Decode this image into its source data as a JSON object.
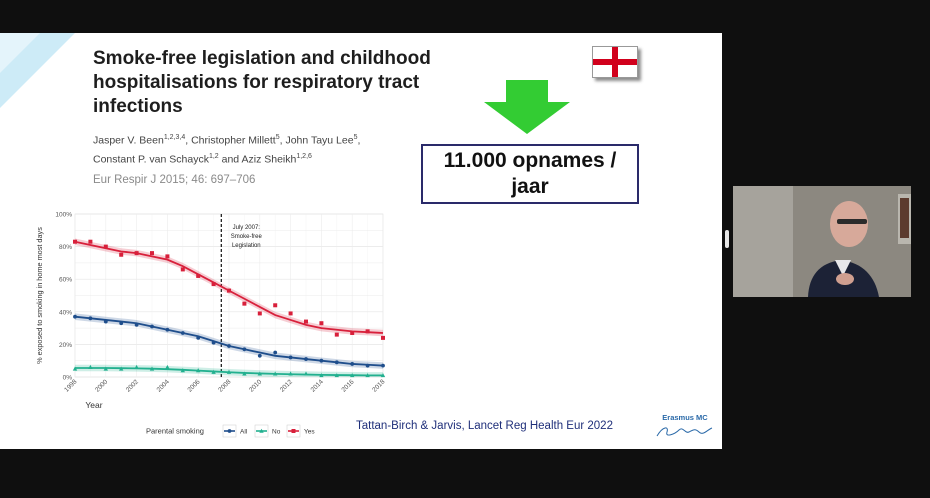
{
  "slide": {
    "title": "Smoke-free legislation and childhood hospitalisations for respiratory tract infections",
    "authors_line1": "Jasper V. Been",
    "authors_sup1": "1,2,3,4",
    "authors_mid1": ", Christopher Millett",
    "authors_sup2": "5",
    "authors_mid2": ", John Tayu Lee",
    "authors_sup3": "5",
    "authors_mid3": ",",
    "authors_line2a": "Constant P. van Schayck",
    "authors_sup4": "1,2",
    "authors_line2b": " and Aziz Sheikh",
    "authors_sup5": "1,2,6",
    "journal": "Eur Respir J 2015; 46: 697–706",
    "stat_box": "11.000 opnames / jaar",
    "citation": "Tattan-Birch & Jarvis, Lancet Reg Health Eur 2022",
    "logo_text": "Erasmus MC",
    "logo_script": "zafing",
    "flag_icon": "england-flag-icon",
    "arrow_icon": "green-down-arrow-icon",
    "colors": {
      "arrow": "#33cc33",
      "flag_cross": "#d1001c",
      "all": "#1f4e8c",
      "no": "#22b08f",
      "yes": "#d8203b"
    }
  },
  "chart_data": {
    "type": "scatter",
    "xlabel": "Year",
    "ylabel": "% exposed to smoking in home most days",
    "xlim": [
      1998,
      2018
    ],
    "ylim": [
      0,
      100
    ],
    "x_ticks": [
      "1998",
      "2000",
      "2002",
      "2004",
      "2006",
      "2008",
      "2010",
      "2012",
      "2014",
      "2016",
      "2018"
    ],
    "y_ticks": [
      "0%",
      "20%",
      "40%",
      "60%",
      "80%",
      "100%"
    ],
    "annotation": "July 2007: Smoke-free Legislation",
    "annotation_x": 2007.5,
    "legend_title": "Parental smoking",
    "legend_position": "bottom",
    "series": [
      {
        "name": "All",
        "color": "#1f4e8c",
        "marker": "circle",
        "x": [
          1998,
          1999,
          2000,
          2001,
          2002,
          2003,
          2004,
          2005,
          2006,
          2007,
          2008,
          2009,
          2010,
          2011,
          2012,
          2013,
          2014,
          2015,
          2016,
          2017,
          2018
        ],
        "points": [
          37,
          36,
          34,
          33,
          32,
          31,
          29,
          27,
          24,
          21,
          19,
          17,
          13,
          15,
          12,
          11,
          10,
          9,
          8,
          7,
          7
        ],
        "trend": [
          37,
          36,
          35,
          34,
          33,
          31,
          29,
          27,
          25,
          22,
          19,
          17,
          15,
          13,
          12,
          11,
          10,
          9,
          8,
          7.5,
          7
        ]
      },
      {
        "name": "No",
        "color": "#22b08f",
        "marker": "triangle",
        "x": [
          1998,
          1999,
          2000,
          2001,
          2002,
          2003,
          2004,
          2005,
          2006,
          2007,
          2008,
          2009,
          2010,
          2011,
          2012,
          2013,
          2014,
          2015,
          2016,
          2017,
          2018
        ],
        "points": [
          5,
          6,
          5,
          5,
          6,
          5,
          6,
          4,
          4,
          3,
          3,
          2,
          2,
          2,
          2,
          2,
          1,
          1,
          1,
          1,
          1
        ],
        "trend": [
          5.5,
          5.5,
          5.5,
          5.4,
          5.3,
          5.1,
          4.8,
          4.4,
          3.9,
          3.4,
          2.9,
          2.5,
          2.2,
          1.9,
          1.7,
          1.5,
          1.3,
          1.2,
          1.1,
          1.0,
          1.0
        ]
      },
      {
        "name": "Yes",
        "color": "#d8203b",
        "marker": "square",
        "x": [
          1998,
          1999,
          2000,
          2001,
          2002,
          2003,
          2004,
          2005,
          2006,
          2007,
          2008,
          2009,
          2010,
          2011,
          2012,
          2013,
          2014,
          2015,
          2016,
          2017,
          2018
        ],
        "points": [
          83,
          83,
          80,
          75,
          76,
          76,
          74,
          66,
          62,
          57,
          53,
          45,
          39,
          44,
          39,
          34,
          33,
          26,
          27,
          28,
          24
        ],
        "trend": [
          83,
          81,
          79,
          77,
          76,
          74,
          72,
          68,
          63,
          58,
          53,
          48,
          43,
          38,
          35,
          32,
          30,
          29,
          28,
          27.5,
          27
        ]
      }
    ]
  }
}
